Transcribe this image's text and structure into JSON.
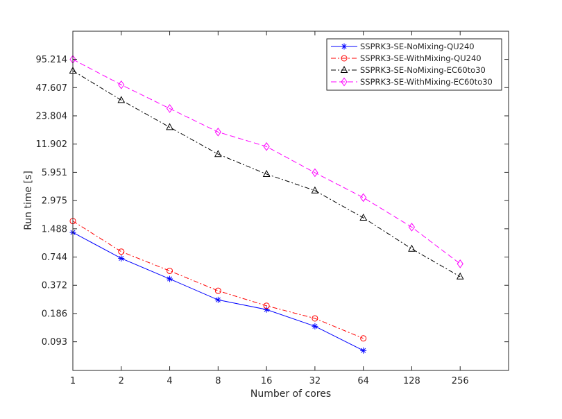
{
  "chart_data": {
    "type": "line",
    "title": "",
    "xlabel": "Number of cores",
    "ylabel": "Run time [s]",
    "xscale": "log2",
    "yscale": "log",
    "x_ticks": [
      "1",
      "2",
      "4",
      "8",
      "16",
      "32",
      "64",
      "128",
      "256"
    ],
    "y_ticks": [
      "0.093",
      "0.186",
      "0.372",
      "0.744",
      "1.488",
      "2.975",
      "5.951",
      "11.902",
      "23.804",
      "47.607",
      "95.214"
    ],
    "xlim": [
      1,
      512
    ],
    "ylim": [
      0.046,
      190
    ],
    "grid": false,
    "legend_position": "top-right",
    "series": [
      {
        "name": "SSPRK3-SE-NoMixing-QU240",
        "color": "#0000ff",
        "line_style": "solid",
        "marker": "asterisk",
        "x": [
          1,
          2,
          4,
          8,
          16,
          32,
          64
        ],
        "y": [
          1.36,
          0.72,
          0.435,
          0.26,
          0.205,
          0.136,
          0.075
        ]
      },
      {
        "name": "SSPRK3-SE-WithMixing-QU240",
        "color": "#ff0000",
        "line_style": "dash-dot",
        "marker": "circle",
        "x": [
          1,
          2,
          4,
          8,
          16,
          32,
          64
        ],
        "y": [
          1.8,
          0.85,
          0.53,
          0.325,
          0.225,
          0.165,
          0.101
        ]
      },
      {
        "name": "SSPRK3-SE-NoMixing-EC60to30",
        "color": "#000000",
        "line_style": "dash-dot",
        "marker": "triangle",
        "x": [
          1,
          2,
          4,
          8,
          16,
          32,
          64,
          128,
          256
        ],
        "y": [
          72,
          35,
          18,
          9.3,
          5.7,
          3.8,
          1.95,
          0.91,
          0.46
        ]
      },
      {
        "name": "SSPRK3-SE-WithMixing-EC60to30",
        "color": "#ff00ff",
        "line_style": "dash",
        "marker": "diamond",
        "x": [
          1,
          2,
          4,
          8,
          16,
          32,
          64,
          128,
          256
        ],
        "y": [
          95.2,
          51,
          28.5,
          16,
          11.2,
          5.9,
          3.2,
          1.55,
          0.63
        ]
      }
    ]
  }
}
